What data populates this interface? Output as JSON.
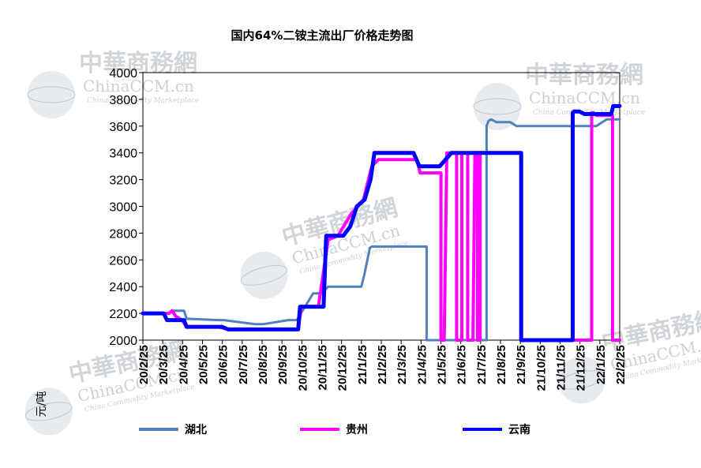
{
  "chart_data": {
    "type": "line",
    "title": "国内64%二铵主流出厂价格走势图",
    "ylabel": "元/吨",
    "ylim": [
      2000,
      4000
    ],
    "yticks": [
      2000,
      2200,
      2400,
      2600,
      2800,
      3000,
      3200,
      3400,
      3600,
      3800,
      4000
    ],
    "x_start": "2020-02-25",
    "x_end": "2022-02-25",
    "xticks": [
      "20/2/25",
      "20/3/25",
      "20/4/25",
      "20/5/25",
      "20/6/25",
      "20/7/25",
      "20/8/25",
      "20/9/25",
      "20/10/25",
      "20/11/25",
      "20/12/25",
      "21/1/25",
      "21/2/25",
      "21/3/25",
      "21/4/25",
      "21/5/25",
      "21/6/25",
      "21/7/25",
      "21/8/25",
      "21/9/25",
      "21/10/25",
      "21/11/25",
      "21/12/25",
      "22/1/25",
      "22/2/25"
    ],
    "legend_position": "bottom",
    "grid": false,
    "series": [
      {
        "name": "湖北",
        "color": "#4f81bd",
        "x": [
          "2020-02-25",
          "2020-04-05",
          "2020-04-12",
          "2020-04-28",
          "2020-05-02",
          "2020-06-20",
          "2020-06-28",
          "2020-08-15",
          "2020-08-28",
          "2020-10-05",
          "2020-10-15",
          "2020-10-18",
          "2020-11-12",
          "2020-11-25",
          "2020-12-05",
          "2021-01-25",
          "2021-01-30",
          "2021-02-07",
          "2021-02-10",
          "2021-03-25",
          "2021-05-03",
          "2021-05-05",
          "2021-05-05",
          "2021-08-05",
          "2021-08-05",
          "2021-08-08",
          "2021-08-12",
          "2021-08-20",
          "2021-09-10",
          "2021-09-20",
          "2022-01-20",
          "2022-02-05",
          "2022-02-25"
        ],
        "y": [
          2200,
          2200,
          2220,
          2220,
          2160,
          2150,
          2150,
          2120,
          2120,
          2150,
          2150,
          2150,
          2350,
          2350,
          2400,
          2400,
          2500,
          2690,
          2700,
          2700,
          2700,
          2700,
          2000,
          2000,
          3600,
          3640,
          3650,
          3630,
          3630,
          3600,
          3600,
          3650,
          3650
        ]
      },
      {
        "name": "贵州",
        "color": "#ff00ff",
        "x": [
          "2020-02-25",
          "2020-04-05",
          "2020-04-10",
          "2020-04-15",
          "2020-04-25",
          "2020-05-02",
          "2020-06-20",
          "2020-07-05",
          "2020-10-20",
          "2020-10-25",
          "2020-11-20",
          "2020-12-05",
          "2020-12-20",
          "2021-01-10",
          "2021-01-20",
          "2021-01-28",
          "2021-02-10",
          "2021-02-20",
          "2021-03-25",
          "2021-04-20",
          "2021-04-25",
          "2021-05-25",
          "2021-05-27",
          "2021-05-27",
          "2021-06-01",
          "2021-06-05",
          "2021-06-12",
          "2021-06-20",
          "2021-06-20",
          "2021-06-28",
          "2021-06-28",
          "2021-07-05",
          "2021-07-07",
          "2021-07-07",
          "2021-07-15",
          "2021-07-18",
          "2021-07-22",
          "2021-07-22",
          "2021-07-26",
          "2021-07-26",
          "2021-09-25",
          "2021-09-27",
          "2021-09-27",
          "2022-01-13",
          "2022-01-13",
          "2022-01-16",
          "2022-01-20",
          "2022-02-10",
          "2022-02-14",
          "2022-02-14",
          "2022-02-25"
        ],
        "y": [
          2200,
          2200,
          2220,
          2180,
          2150,
          2100,
          2100,
          2080,
          2080,
          2250,
          2250,
          2750,
          2780,
          2950,
          3000,
          3050,
          3300,
          3350,
          3350,
          3350,
          3250,
          3250,
          3250,
          2000,
          2000,
          3400,
          3400,
          3400,
          2000,
          2000,
          3400,
          3400,
          3400,
          2000,
          2000,
          3400,
          3400,
          2000,
          2000,
          3400,
          3400,
          3400,
          2000,
          2000,
          3700,
          3700,
          3680,
          3680,
          3680,
          2000,
          2000
        ]
      },
      {
        "name": "云南",
        "color": "#0000ff",
        "x": [
          "2020-02-25",
          "2020-03-28",
          "2020-04-02",
          "2020-04-28",
          "2020-05-02",
          "2020-06-25",
          "2020-07-05",
          "2020-10-20",
          "2020-10-23",
          "2020-11-28",
          "2020-12-02",
          "2020-12-28",
          "2021-01-08",
          "2021-01-18",
          "2021-01-30",
          "2021-02-08",
          "2021-02-14",
          "2021-04-15",
          "2021-04-24",
          "2021-05-22",
          "2021-05-25",
          "2021-06-12",
          "2021-06-20",
          "2021-07-10",
          "2021-08-20",
          "2021-09-20",
          "2021-09-27",
          "2021-09-27",
          "2021-12-15",
          "2021-12-15",
          "2021-12-17",
          "2021-12-25",
          "2022-01-02",
          "2022-01-25",
          "2022-02-12",
          "2022-02-15",
          "2022-02-25"
        ],
        "y": [
          2200,
          2200,
          2150,
          2150,
          2100,
          2100,
          2080,
          2080,
          2250,
          2250,
          2780,
          2780,
          2850,
          3000,
          3050,
          3200,
          3400,
          3400,
          3300,
          3300,
          3300,
          3400,
          3400,
          3400,
          3400,
          3400,
          3400,
          2000,
          2000,
          3700,
          3710,
          3710,
          3690,
          3690,
          3690,
          3750,
          3750
        ]
      }
    ]
  },
  "watermarks": [
    {
      "main": "中華商務網",
      "sub": "ChinaCCM.cn",
      "tag": "China Commodity Marketplace"
    },
    {
      "main": "中華商務網",
      "sub": "ChinaCCM.cn",
      "tag": "China Commodity Marketplace"
    },
    {
      "main": "中華商務網",
      "sub": "ChinaCCM.cn",
      "tag": "China Commodity Marketplace"
    },
    {
      "main": "中華商務網",
      "sub": "ChinaCCM.cn",
      "tag": "China Commodity Marketplace"
    },
    {
      "main": "中華商務網",
      "sub": "ChinaCCM.cn",
      "tag": "China Commodity Marketplace"
    }
  ]
}
